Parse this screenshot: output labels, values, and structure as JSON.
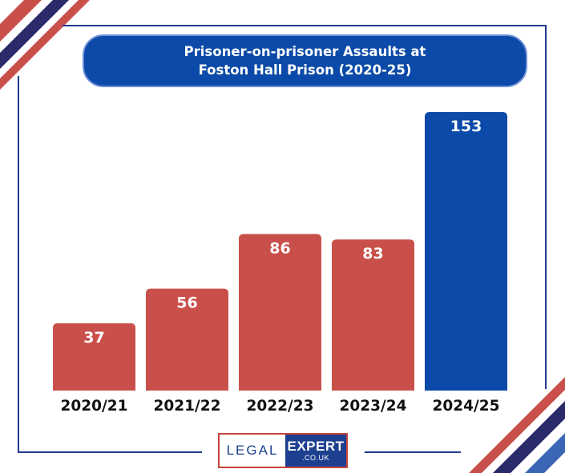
{
  "chart_data": {
    "type": "bar",
    "title": "Prisoner-on-prisoner Assaults at Foston Hall Prison (2020-25)",
    "categories": [
      "2020/21",
      "2021/22",
      "2022/23",
      "2023/24",
      "2024/25"
    ],
    "values": [
      37,
      56,
      86,
      83,
      153
    ],
    "xlabel": "",
    "ylabel": "",
    "ylim": [
      0,
      160
    ],
    "grid": false,
    "data_labels": true,
    "bar_colors": [
      "#c9504a",
      "#c9504a",
      "#c9504a",
      "#c9504a",
      "#0b4aa8"
    ]
  },
  "title_lines": [
    "Prisoner-on-prisoner Assaults at",
    "Foston Hall Prison (2020-25)"
  ],
  "logo": {
    "word1": "LEGAL",
    "word2": "EXPERT",
    "domain": ".CO.UK"
  },
  "colors": {
    "accent_red": "#c9504a",
    "brand_blue": "#0b4aa8",
    "deco_navy": "#2b2a6a"
  }
}
